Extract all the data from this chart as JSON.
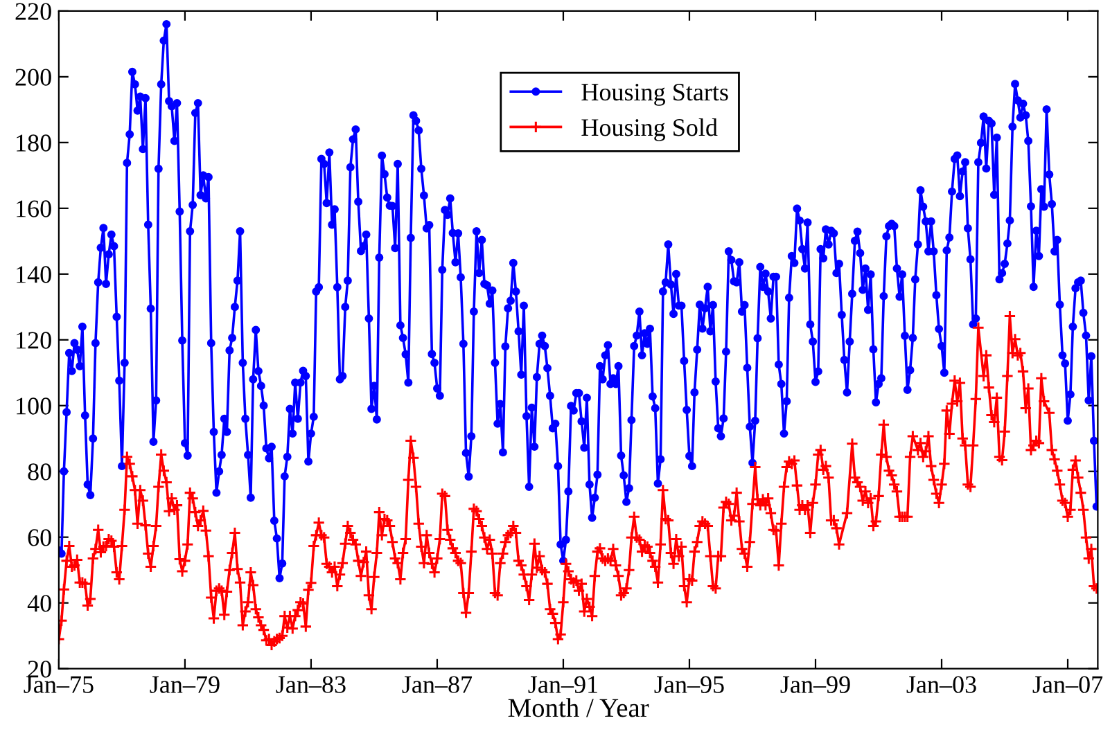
{
  "chart_data": {
    "type": "line",
    "xlabel": "Month / Year",
    "legend": "top",
    "line_style": "solid",
    "xlim": [
      "1975-01",
      "2007-12-15"
    ],
    "ylim": [
      20,
      220
    ],
    "yticks": [
      20,
      40,
      60,
      80,
      100,
      120,
      140,
      160,
      180,
      200,
      220
    ],
    "xticks": [
      {
        "value": "1975-01",
        "label": "Jan–75"
      },
      {
        "value": "1979-01",
        "label": "Jan–79"
      },
      {
        "value": "1983-01",
        "label": "Jan–83"
      },
      {
        "value": "1987-01",
        "label": "Jan–87"
      },
      {
        "value": "1991-01",
        "label": "Jan–91"
      },
      {
        "value": "1995-01",
        "label": "Jan–95"
      },
      {
        "value": "1999-01",
        "label": "Jan–99"
      },
      {
        "value": "2003-01",
        "label": "Jan–03"
      },
      {
        "value": "2007-01",
        "label": "Jan–07"
      }
    ],
    "x": [
      "1975-01",
      "1975-02",
      "1975-03",
      "1975-04",
      "1975-05",
      "1975-06",
      "1975-07",
      "1975-08",
      "1975-09",
      "1975-10",
      "1975-11",
      "1975-12",
      "1976-01",
      "1976-02",
      "1976-03",
      "1976-04",
      "1976-05",
      "1976-06",
      "1976-07",
      "1976-08",
      "1976-09",
      "1976-10",
      "1976-11",
      "1976-12",
      "1977-01",
      "1977-02",
      "1977-03",
      "1977-04",
      "1977-05",
      "1977-06",
      "1977-07",
      "1977-08",
      "1977-09",
      "1977-10",
      "1977-11",
      "1977-12",
      "1978-01",
      "1978-02",
      "1978-03",
      "1978-04",
      "1978-05",
      "1978-06",
      "1978-07",
      "1978-08",
      "1978-09",
      "1978-10",
      "1978-11",
      "1978-12",
      "1979-01",
      "1979-02",
      "1979-03",
      "1979-04",
      "1979-05",
      "1979-06",
      "1979-07",
      "1979-08",
      "1979-09",
      "1979-10",
      "1979-11",
      "1979-12",
      "1980-01",
      "1980-02",
      "1980-03",
      "1980-04",
      "1980-05",
      "1980-06",
      "1980-07",
      "1980-08",
      "1980-09",
      "1980-10",
      "1980-11",
      "1980-12",
      "1981-01",
      "1981-02",
      "1981-03",
      "1981-04",
      "1981-05",
      "1981-06",
      "1981-07",
      "1981-08",
      "1981-09",
      "1981-10",
      "1981-11",
      "1981-12",
      "1982-01",
      "1982-02",
      "1982-03",
      "1982-04",
      "1982-05",
      "1982-06",
      "1982-07",
      "1982-08",
      "1982-09",
      "1982-10",
      "1982-11",
      "1982-12",
      "1983-01",
      "1983-02",
      "1983-03",
      "1983-04",
      "1983-05",
      "1983-06",
      "1983-07",
      "1983-08",
      "1983-09",
      "1983-10",
      "1983-11",
      "1983-12",
      "1984-01",
      "1984-02",
      "1984-03",
      "1984-04",
      "1984-05",
      "1984-06",
      "1984-07",
      "1984-08",
      "1984-09",
      "1984-10",
      "1984-11",
      "1984-12",
      "1985-01",
      "1985-02",
      "1985-03",
      "1985-04",
      "1985-05",
      "1985-06",
      "1985-07",
      "1985-08",
      "1985-09",
      "1985-10",
      "1985-11",
      "1985-12",
      "1986-01",
      "1986-02",
      "1986-03",
      "1986-04",
      "1986-05",
      "1986-06",
      "1986-07",
      "1986-08",
      "1986-09",
      "1986-10",
      "1986-11",
      "1986-12",
      "1987-01",
      "1987-02",
      "1987-03",
      "1987-04",
      "1987-05",
      "1987-06",
      "1987-07",
      "1987-08",
      "1987-09",
      "1987-10",
      "1987-11",
      "1987-12",
      "1988-01",
      "1988-02",
      "1988-03",
      "1988-04",
      "1988-05",
      "1988-06",
      "1988-07",
      "1988-08",
      "1988-09",
      "1988-10",
      "1988-11",
      "1988-12",
      "1989-01",
      "1989-02",
      "1989-03",
      "1989-04",
      "1989-05",
      "1989-06",
      "1989-07",
      "1989-08",
      "1989-09",
      "1989-10",
      "1989-11",
      "1989-12",
      "1990-01",
      "1990-02",
      "1990-03",
      "1990-04",
      "1990-05",
      "1990-06",
      "1990-07",
      "1990-08",
      "1990-09",
      "1990-10",
      "1990-11",
      "1990-12",
      "1991-01",
      "1991-02",
      "1991-03",
      "1991-04",
      "1991-05",
      "1991-06",
      "1991-07",
      "1991-08",
      "1991-09",
      "1991-10",
      "1991-11",
      "1991-12",
      "1992-01",
      "1992-02",
      "1992-03",
      "1992-04",
      "1992-05",
      "1992-06",
      "1992-07",
      "1992-08",
      "1992-09",
      "1992-10",
      "1992-11",
      "1992-12",
      "1993-01",
      "1993-02",
      "1993-03",
      "1993-04",
      "1993-05",
      "1993-06",
      "1993-07",
      "1993-08",
      "1993-09",
      "1993-10",
      "1993-11",
      "1993-12",
      "1994-01",
      "1994-02",
      "1994-03",
      "1994-04",
      "1994-05",
      "1994-06",
      "1994-07",
      "1994-08",
      "1994-09",
      "1994-10",
      "1994-11",
      "1994-12",
      "1995-01",
      "1995-02",
      "1995-03",
      "1995-04",
      "1995-05",
      "1995-06",
      "1995-07",
      "1995-08",
      "1995-09",
      "1995-10",
      "1995-11",
      "1995-12",
      "1996-01",
      "1996-02",
      "1996-03",
      "1996-04",
      "1996-05",
      "1996-06",
      "1996-07",
      "1996-08",
      "1996-09",
      "1996-10",
      "1996-11",
      "1996-12",
      "1997-01",
      "1997-02",
      "1997-03",
      "1997-04",
      "1997-05",
      "1997-06",
      "1997-07",
      "1997-08",
      "1997-09",
      "1997-10",
      "1997-11",
      "1997-12",
      "1998-01",
      "1998-02",
      "1998-03",
      "1998-04",
      "1998-05",
      "1998-06",
      "1998-07",
      "1998-08",
      "1998-09",
      "1998-10",
      "1998-11",
      "1998-12",
      "1999-01",
      "1999-02",
      "1999-03",
      "1999-04",
      "1999-05",
      "1999-06",
      "1999-07",
      "1999-08",
      "1999-09",
      "1999-10",
      "1999-11",
      "1999-12",
      "2000-01",
      "2000-02",
      "2000-03",
      "2000-04",
      "2000-05",
      "2000-06",
      "2000-07",
      "2000-08",
      "2000-09",
      "2000-10",
      "2000-11",
      "2000-12",
      "2001-01",
      "2001-02",
      "2001-03",
      "2001-04",
      "2001-05",
      "2001-06",
      "2001-07",
      "2001-08",
      "2001-09",
      "2001-10",
      "2001-11",
      "2001-12",
      "2002-01",
      "2002-02",
      "2002-03",
      "2002-04",
      "2002-05",
      "2002-06",
      "2002-07",
      "2002-08",
      "2002-09",
      "2002-10",
      "2002-11",
      "2002-12",
      "2003-01",
      "2003-02",
      "2003-03",
      "2003-04",
      "2003-05",
      "2003-06",
      "2003-07",
      "2003-08",
      "2003-09",
      "2003-10",
      "2003-11",
      "2003-12",
      "2004-01",
      "2004-02",
      "2004-03",
      "2004-04",
      "2004-05",
      "2004-06",
      "2004-07",
      "2004-08",
      "2004-09",
      "2004-10",
      "2004-11",
      "2004-12",
      "2005-01",
      "2005-02",
      "2005-03",
      "2005-04",
      "2005-05",
      "2005-06",
      "2005-07",
      "2005-08",
      "2005-09",
      "2005-10",
      "2005-11",
      "2005-12",
      "2006-01",
      "2006-02",
      "2006-03",
      "2006-04",
      "2006-05",
      "2006-06",
      "2006-07",
      "2006-08",
      "2006-09",
      "2006-10",
      "2006-11",
      "2006-12",
      "2007-01",
      "2007-02",
      "2007-03",
      "2007-04",
      "2007-05",
      "2007-06",
      "2007-07",
      "2007-08",
      "2007-09",
      "2007-10",
      "2007-11",
      "2007-12"
    ],
    "series": [
      {
        "name": "Housing Starts",
        "color": "#0000ff",
        "marker": "circle",
        "values": [
          56,
          55,
          80,
          98,
          116,
          110.5,
          119,
          117,
          112,
          124,
          97,
          76,
          72.8,
          90,
          119,
          137.5,
          148,
          154,
          137,
          146,
          152,
          148.5,
          127,
          107.6,
          81.6,
          113,
          173.8,
          182.5,
          201.5,
          197.7,
          189.7,
          194,
          178,
          193.5,
          155,
          129.5,
          89,
          101.6,
          172,
          197.7,
          211,
          216,
          192.6,
          191,
          180.5,
          192,
          159,
          119.8,
          88.6,
          84.8,
          153,
          161,
          189,
          192,
          164,
          170,
          163,
          169.5,
          119,
          92,
          73.5,
          80,
          85,
          96,
          92,
          116.8,
          120.6,
          130,
          138,
          153,
          113,
          96,
          85,
          72,
          108,
          123,
          110.5,
          106,
          100,
          87,
          84,
          87.5,
          65,
          59.6,
          47.5,
          52,
          78.5,
          84.4,
          99,
          91.5,
          107,
          96,
          107,
          110.6,
          109,
          83,
          91.5,
          96.6,
          134.7,
          136,
          175,
          173.5,
          161.6,
          177,
          155,
          159.7,
          136,
          108,
          109,
          130,
          138,
          172.5,
          181,
          184,
          162,
          147,
          148.5,
          152,
          126.5,
          99,
          106,
          95.8,
          145,
          176,
          170.4,
          163.3,
          160.8,
          160.7,
          147.9,
          173.5,
          124.4,
          120.6,
          115.6,
          107,
          151,
          188.3,
          186.6,
          183.7,
          172,
          163.9,
          153.9,
          154.9,
          115.7,
          113,
          105.2,
          103,
          141.3,
          159.5,
          158,
          163,
          152.5,
          143.6,
          152.4,
          139,
          118.8,
          85.6,
          78.4,
          90.7,
          128.6,
          153,
          140.3,
          150.4,
          137,
          136.6,
          131,
          135,
          113,
          94.5,
          100.5,
          85.8,
          118,
          129.6,
          131.9,
          143.4,
          134.7,
          122.6,
          109.4,
          130.4,
          96.8,
          75.3,
          99.4,
          87.5,
          108.7,
          118.8,
          121.3,
          118.1,
          111.4,
          103,
          93.1,
          94.5,
          81.6,
          57.8,
          52.8,
          59.2,
          73.9,
          99.9,
          98.5,
          103.8,
          103.8,
          95.2,
          87.2,
          102.4,
          76,
          65.9,
          72,
          79,
          112,
          108,
          115.3,
          118.4,
          106.6,
          108.3,
          106.6,
          112,
          84.8,
          78.8,
          70.7,
          74.9,
          95.6,
          118.1,
          121.3,
          128.6,
          115.3,
          122,
          118.8,
          123.4,
          102.8,
          99.2,
          76.3,
          83.7,
          134.7,
          137.5,
          149,
          136.8,
          127.9,
          140,
          130.4,
          130.4,
          113.6,
          98.7,
          84.7,
          81.6,
          104,
          117,
          130.7,
          123.4,
          129.6,
          136.1,
          122.6,
          130.6,
          107.3,
          93.1,
          90.7,
          96.1,
          116.4,
          146.9,
          144.3,
          137.8,
          137.5,
          143.6,
          128.6,
          130.6,
          111.5,
          93.6,
          82.6,
          95.4,
          120.5,
          142.2,
          136.1,
          140.1,
          134.7,
          126.5,
          139.2,
          139.2,
          112.5,
          106.6,
          91.5,
          101.3,
          132.8,
          145.5,
          143.4,
          159.9,
          156.3,
          147.6,
          141.7,
          155.7,
          124.7,
          119.5,
          107.2,
          110.4,
          147.6,
          144.8,
          153.6,
          149,
          153.2,
          152.4,
          140.3,
          143.1,
          127.6,
          113.9,
          104,
          119.5,
          134,
          150.1,
          152.9,
          146.4,
          135.2,
          141.7,
          129.1,
          139.9,
          117.1,
          101,
          106.6,
          108.3,
          133.3,
          151.5,
          154.6,
          155.3,
          154.6,
          141.7,
          133.1,
          139.9,
          121.2,
          104.8,
          110.8,
          120.6,
          138.4,
          149,
          165.5,
          160.5,
          156,
          146.9,
          156,
          146.9,
          133.6,
          123.3,
          118.1,
          110,
          147.2,
          151.1,
          165.1,
          175,
          176.1,
          163.7,
          171.2,
          174,
          153.9,
          144.5,
          124.7,
          126.5,
          174,
          179.9,
          187.9,
          172.1,
          186.6,
          185.8,
          164.1,
          181.5,
          138.4,
          140.3,
          143.1,
          149.3,
          156.3,
          184.8,
          197.8,
          192.8,
          187.6,
          191.8,
          188.3,
          180.5,
          160.6,
          136.1,
          153.2,
          145.5,
          165.8,
          160.5,
          190.1,
          170.3,
          161.3,
          146.9,
          150.4,
          130.7,
          115.3,
          112.8,
          95.4,
          103.4,
          124,
          135.7,
          137.5,
          138,
          128.2,
          121.3,
          101.6,
          115,
          89.3,
          69.3
        ]
      },
      {
        "name": "Housing Sold",
        "color": "#ff0000",
        "marker": "cross",
        "x": [
          "1975-01",
          "1975-02",
          "1975-03",
          "1975-04",
          "1975-05",
          "1975-06",
          "1975-07",
          "1975-08",
          "1975-09",
          "1975-10",
          "1975-11",
          "1975-12",
          "1976-01",
          "1976-02",
          "1976-03",
          "1976-04",
          "1976-05",
          "1976-06",
          "1976-07",
          "1976-08",
          "1976-09",
          "1976-10",
          "1976-11",
          "1976-12",
          "1977-01",
          "1977-02",
          "1977-03",
          "1977-04",
          "1977-05",
          "1977-06",
          "1977-07",
          "1977-08",
          "1977-09",
          "1977-10",
          "1977-11",
          "1977-12",
          "1978-01",
          "1978-02",
          "1978-03",
          "1978-04",
          "1978-05",
          "1978-06",
          "1978-07",
          "1978-08",
          "1978-09",
          "1978-10",
          "1978-11",
          "1978-12",
          "1979-01",
          "1979-02",
          "1979-03",
          "1979-04",
          "1979-05",
          "1979-06",
          "1979-07",
          "1979-08",
          "1979-09",
          "1979-10",
          "1979-11",
          "1979-12",
          "1980-01",
          "1980-02",
          "1980-03",
          "1980-04",
          "1980-05",
          "1980-06",
          "1980-07",
          "1980-08",
          "1980-09",
          "1980-10",
          "1980-11",
          "1980-12",
          "1981-01",
          "1981-02",
          "1981-03",
          "1981-04",
          "1981-05",
          "1981-06",
          "1981-07",
          "1981-08",
          "1981-09",
          "1981-10",
          "1981-11",
          "1981-12",
          "1982-01",
          "1982-02",
          "1982-03",
          "1982-04",
          "1982-05",
          "1982-06",
          "1982-07",
          "1982-08",
          "1982-09",
          "1982-10",
          "1982-11",
          "1982-12",
          "1983-01",
          "1983-02",
          "1983-03",
          "1983-04",
          "1983-05",
          "1983-06",
          "1983-07",
          "1983-08",
          "1983-09",
          "1983-10",
          "1983-11",
          "1983-12",
          "1984-01",
          "1984-02",
          "1984-03",
          "1984-04",
          "1984-05",
          "1984-06",
          "1984-07",
          "1984-08",
          "1984-09",
          "1984-10",
          "1984-11",
          "1984-12",
          "1985-01",
          "1985-02",
          "1985-03",
          "1985-04",
          "1985-05",
          "1985-06",
          "1985-07",
          "1985-08",
          "1985-09",
          "1985-10",
          "1985-11",
          "1985-12",
          "1986-01",
          "1986-02",
          "1986-03",
          "1986-04",
          "1986-05",
          "1986-06",
          "1986-07",
          "1986-08",
          "1986-09",
          "1986-10",
          "1986-11",
          "1986-12",
          "1987-01",
          "1987-02",
          "1987-03",
          "1987-04",
          "1987-05",
          "1987-06",
          "1987-07",
          "1987-08",
          "1987-09",
          "1987-10",
          "1987-11",
          "1987-12",
          "1988-01",
          "1988-02",
          "1988-03",
          "1988-04",
          "1988-05",
          "1988-06",
          "1988-07",
          "1988-08",
          "1988-09",
          "1988-10",
          "1988-11",
          "1988-12",
          "1989-01",
          "1989-02",
          "1989-03",
          "1989-04",
          "1989-05",
          "1989-06",
          "1989-07",
          "1989-08",
          "1989-09",
          "1989-10",
          "1989-11",
          "1989-12",
          "1990-01",
          "1990-02",
          "1990-03",
          "1990-04",
          "1990-05",
          "1990-06",
          "1990-07",
          "1990-08",
          "1990-09",
          "1990-10",
          "1990-11",
          "1990-12",
          "1991-01",
          "1991-02",
          "1991-03",
          "1991-04",
          "1991-05",
          "1991-06",
          "1991-07",
          "1991-08",
          "1991-09",
          "1991-10",
          "1991-11",
          "1991-12",
          "1992-01",
          "1992-02",
          "1992-03",
          "1992-04",
          "1992-05",
          "1992-06",
          "1992-07",
          "1992-08",
          "1992-09",
          "1992-10",
          "1992-11",
          "1992-12",
          "1993-01",
          "1993-02",
          "1993-03",
          "1993-04",
          "1993-05",
          "1993-06",
          "1993-07",
          "1993-08",
          "1993-09",
          "1993-10",
          "1993-11",
          "1993-12",
          "1994-01",
          "1994-02",
          "1994-03",
          "1994-04",
          "1994-05",
          "1994-06",
          "1994-07",
          "1994-08",
          "1994-09",
          "1994-10",
          "1994-11",
          "1994-12",
          "1995-01",
          "1995-02",
          "1995-03",
          "1995-04",
          "1995-05",
          "1995-06",
          "1995-07",
          "1995-08",
          "1995-09",
          "1995-10",
          "1995-11",
          "1995-12",
          "1996-01",
          "1996-02",
          "1996-03",
          "1996-04",
          "1996-05",
          "1996-06",
          "1996-07",
          "1996-08",
          "1996-09",
          "1996-10",
          "1996-11",
          "1996-12",
          "1997-01",
          "1997-02",
          "1997-03",
          "1997-04",
          "1997-05",
          "1997-06",
          "1997-07",
          "1997-08",
          "1997-09",
          "1997-10",
          "1997-11",
          "1997-12",
          "1998-01",
          "1998-02",
          "1998-03",
          "1998-04",
          "1998-05",
          "1998-06",
          "1998-07",
          "1998-08",
          "1998-09",
          "1998-10",
          "1998-11",
          "1998-12",
          "1999-01",
          "1999-02",
          "1999-03",
          "1999-04",
          "1999-05",
          "1999-06",
          "1999-07",
          "1999-08",
          "1999-09",
          "1999-10",
          "2000-01",
          "2000-03",
          "2000-04",
          "2000-05",
          "2000-06",
          "2000-07",
          "2000-08",
          "2000-09",
          "2000-10",
          "2000-11",
          "2000-12",
          "2001-01",
          "2001-02",
          "2001-03",
          "2001-04",
          "2001-05",
          "2001-06",
          "2001-07",
          "2001-08",
          "2001-09",
          "2001-10",
          "2001-11",
          "2001-12",
          "2002-01",
          "2002-02",
          "2002-04",
          "2002-05",
          "2002-06",
          "2002-07",
          "2002-08",
          "2002-09",
          "2002-10",
          "2002-11",
          "2002-12",
          "2003-01",
          "2003-02",
          "2003-03",
          "2003-04",
          "2003-05",
          "2003-06",
          "2003-07",
          "2003-08",
          "2003-09",
          "2003-10",
          "2003-11",
          "2003-12",
          "2004-01",
          "2004-02",
          "2004-03",
          "2004-05",
          "2004-06",
          "2004-07",
          "2004-08",
          "2004-09",
          "2004-10",
          "2004-11",
          "2004-12",
          "2005-01",
          "2005-02",
          "2005-03",
          "2005-04",
          "2005-05",
          "2005-06",
          "2005-07",
          "2005-08",
          "2005-09",
          "2005-10",
          "2005-11",
          "2005-12",
          "2006-01",
          "2006-02",
          "2006-03",
          "2006-04",
          "2006-06",
          "2006-07",
          "2006-08",
          "2006-09",
          "2006-10",
          "2006-11",
          "2006-12",
          "2007-01",
          "2007-02",
          "2007-03",
          "2007-04",
          "2007-05",
          "2007-06",
          "2007-07",
          "2007-08",
          "2007-09",
          "2007-10",
          "2007-11",
          "2007-12"
        ],
        "values": [
          29,
          34.6,
          44.1,
          52.8,
          57.3,
          51,
          51.4,
          53.1,
          46.2,
          46.2,
          45.8,
          39.2,
          41.2,
          53.5,
          56.4,
          62.2,
          55.4,
          57.1,
          57.3,
          59.4,
          58.9,
          57.1,
          49.3,
          47.2,
          57.3,
          68.3,
          84.4,
          82.3,
          78.5,
          74.3,
          64.1,
          74.3,
          71.1,
          63.6,
          55,
          51,
          57.3,
          63.4,
          75.3,
          85.1,
          80.2,
          76.7,
          67.9,
          71.8,
          68.3,
          69.7,
          53.3,
          49.6,
          52.8,
          57.8,
          73.5,
          71.8,
          67.6,
          63.4,
          65.1,
          68,
          62,
          54.2,
          41.6,
          35.3,
          43.7,
          44.4,
          43.7,
          36.4,
          43.4,
          50,
          55.2,
          61.3,
          50.3,
          46.2,
          33.2,
          37.4,
          40.2,
          49.3,
          45.4,
          38.1,
          35.6,
          33.2,
          31.8,
          28.6,
          29,
          27.2,
          28.3,
          29,
          29.3,
          30,
          36,
          32.5,
          36,
          32.2,
          36,
          37.8,
          40.2,
          39.8,
          32.8,
          44,
          46.1,
          57.3,
          60.6,
          64.4,
          60.6,
          59.9,
          51.9,
          51,
          49.3,
          51,
          45.1,
          48.6,
          52.1,
          58,
          63.4,
          61.3,
          59.2,
          57.8,
          52.8,
          48.2,
          52.4,
          55.6,
          42.3,
          38.1,
          47.9,
          55.2,
          67.6,
          60.6,
          65.5,
          65.1,
          63.4,
          58.5,
          53.5,
          52.1,
          47.2,
          55.2,
          59.4,
          77.4,
          89.3,
          84.1,
          75.3,
          64.1,
          57.1,
          52.1,
          60.6,
          55.2,
          51.9,
          49.3,
          53.5,
          59.4,
          73.2,
          72.5,
          62.2,
          59.2,
          56.6,
          55.2,
          52.8,
          52.1,
          43,
          37,
          43,
          55.6,
          68.6,
          67.9,
          65.5,
          63.4,
          59.9,
          56.4,
          59.2,
          55,
          43,
          42.3,
          52.1,
          55,
          58.5,
          60.6,
          61.3,
          63.4,
          61.3,
          52.8,
          51.4,
          48.6,
          45.1,
          40.9,
          48.6,
          58,
          50.7,
          54.2,
          50,
          49.3,
          45.8,
          38.1,
          36.7,
          33.9,
          29,
          30.4,
          40.2,
          51.9,
          49.6,
          47.2,
          46.2,
          46.8,
          43.7,
          45.8,
          37.4,
          41.2,
          38.8,
          36,
          48.2,
          55.6,
          56.6,
          53.5,
          52.8,
          53.5,
          52.8,
          56.4,
          51.4,
          48.2,
          42.3,
          43,
          44.4,
          50,
          59.9,
          66.2,
          59.9,
          59.2,
          55.6,
          57.5,
          57.1,
          55.2,
          52.8,
          51,
          46.2,
          57.8,
          74.3,
          65.5,
          65.1,
          55.2,
          51.9,
          59.4,
          54.2,
          57.1,
          45.1,
          40.2,
          47.2,
          46.8,
          55.6,
          58.5,
          63.4,
          64.8,
          64.1,
          63.4,
          54.2,
          45.1,
          44.4,
          54.2,
          54.2,
          69,
          70.7,
          70.1,
          65.1,
          66.5,
          73.5,
          64.8,
          56.4,
          55,
          51,
          58.5,
          70.1,
          81.3,
          71.5,
          69.7,
          71.5,
          69.7,
          71.8,
          67.3,
          62.2,
          62,
          51.4,
          64.1,
          75.3,
          81.3,
          83,
          82.3,
          83.3,
          75.7,
          68.3,
          69.7,
          68.3,
          69.7,
          61.3,
          70.4,
          76,
          85.1,
          86.5,
          80.5,
          81.6,
          78.1,
          65.1,
          65.1,
          62.7,
          57.8,
          67.3,
          88.4,
          78.1,
          76.7,
          75.3,
          71.1,
          73.9,
          70.4,
          71.8,
          63.4,
          64.8,
          72.5,
          85.1,
          94.2,
          84.4,
          80.2,
          78.8,
          76,
          73.9,
          66.2,
          66.2,
          66.2,
          66.2,
          84.4,
          90.7,
          86.5,
          88.6,
          84.4,
          86.1,
          90.7,
          81.6,
          77.4,
          73.2,
          70.4,
          76,
          82.3,
          98.5,
          91.4,
          100.6,
          107.6,
          101.3,
          106.9,
          90,
          87.9,
          76,
          75.3,
          87.9,
          102,
          123.7,
          109,
          115.3,
          105.5,
          97.1,
          95,
          102.4,
          84.4,
          83.4,
          92.1,
          109,
          127.2,
          116,
          120.2,
          115.3,
          116,
          110.4,
          99.2,
          105.2,
          86.5,
          87.9,
          89.3,
          88.6,
          108.3,
          101.3,
          97.8,
          86.5,
          83.7,
          80.2,
          76,
          71.1,
          70.4,
          66.2,
          68.3,
          80.5,
          83.3,
          78.1,
          73.5,
          68.3,
          59.9,
          53.5,
          56.4,
          45.1,
          44.4
        ]
      }
    ]
  }
}
